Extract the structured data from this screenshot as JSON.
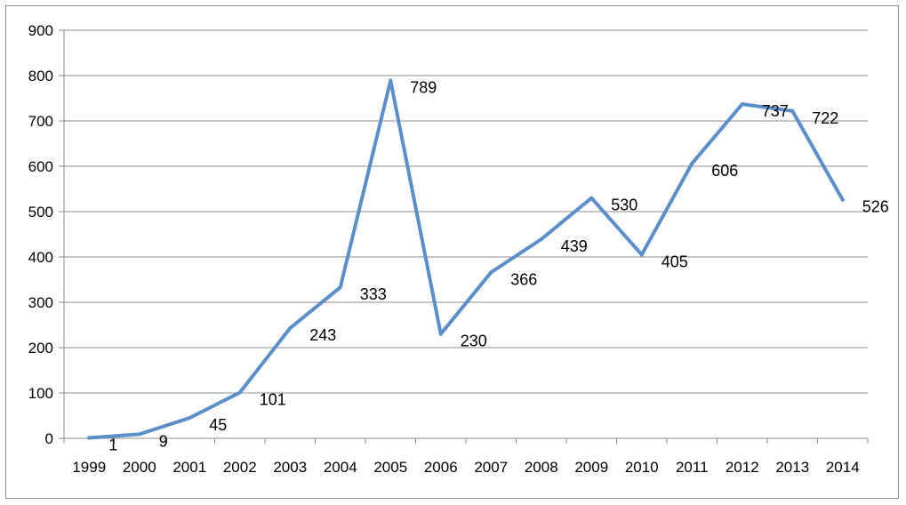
{
  "chart_data": {
    "type": "line",
    "title": "",
    "xlabel": "",
    "ylabel": "",
    "categories": [
      "1999",
      "2000",
      "2001",
      "2002",
      "2003",
      "2004",
      "2005",
      "2006",
      "2007",
      "2008",
      "2009",
      "2010",
      "2011",
      "2012",
      "2013",
      "2014"
    ],
    "series": [
      {
        "values": [
          1,
          9,
          45,
          101,
          243,
          333,
          789,
          230,
          366,
          439,
          530,
          405,
          606,
          737,
          722,
          526
        ],
        "color": "#5b8fc9"
      }
    ],
    "ylim": [
      0,
      900
    ],
    "yticks": [
      0,
      100,
      200,
      300,
      400,
      500,
      600,
      700,
      800,
      900
    ],
    "grid": true,
    "legend": "none",
    "data_labels": true
  }
}
